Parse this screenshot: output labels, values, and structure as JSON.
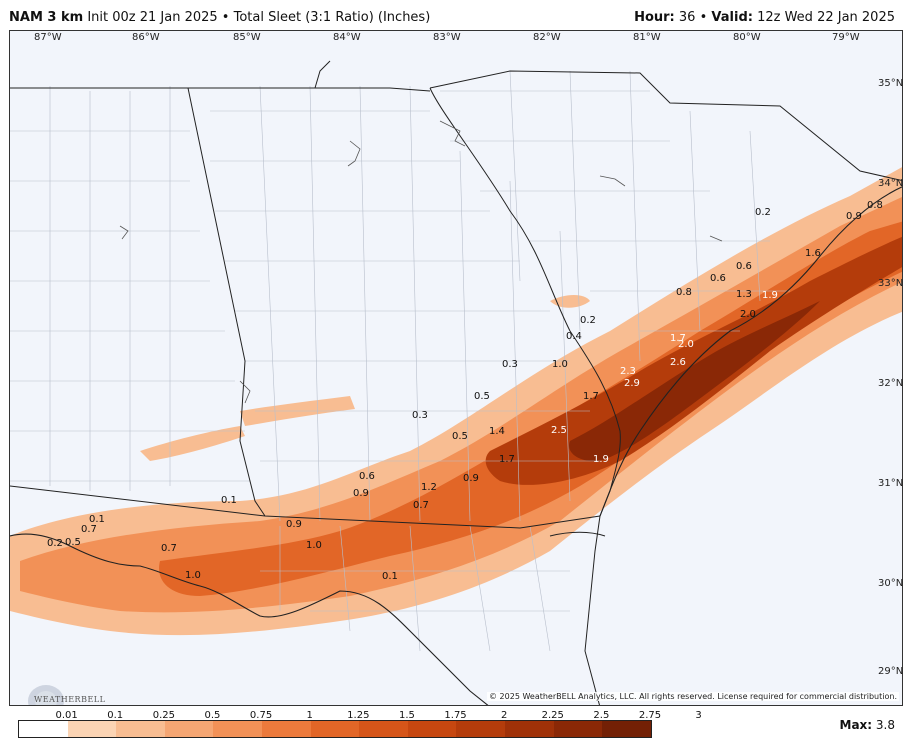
{
  "header": {
    "model": "NAM 3 km",
    "init": "Init 00z 21 Jan 2025",
    "product": "Total Sleet (3:1 Ratio) (Inches)",
    "hour_label": "Hour:",
    "hour": "36",
    "valid_label": "Valid:",
    "valid": "12z Wed 22 Jan 2025"
  },
  "longitude_labels": [
    "87°W",
    "86°W",
    "85°W",
    "84°W",
    "83°W",
    "82°W",
    "81°W",
    "80°W",
    "79°W"
  ],
  "latitude_labels": [
    "35°N",
    "34°N",
    "33°N",
    "32°N",
    "31°N",
    "30°N",
    "29°N"
  ],
  "colorbar": {
    "ticks": [
      "0.01",
      "0.1",
      "0.25",
      "0.5",
      "0.75",
      "1",
      "1.25",
      "1.5",
      "1.75",
      "2",
      "2.25",
      "2.5",
      "2.75",
      "3"
    ],
    "colors": [
      "#ffffff",
      "#fbd4b4",
      "#f8bd92",
      "#f5a673",
      "#f29157",
      "#ec7a3c",
      "#e26627",
      "#d55519",
      "#c64710",
      "#b43c0b",
      "#9f3108",
      "#8a2806",
      "#732005"
    ]
  },
  "max": {
    "label": "Max:",
    "value": "3.8"
  },
  "copyright": "© 2025 WeatherBELL Analytics, LLC. All rights reserved. License required for commercial distribution.",
  "logo_text": "WEATHERBELL",
  "map_values": [
    "0.2",
    "0.9",
    "0.8",
    "1.6",
    "0.6",
    "0.6",
    "0.8",
    "1.3",
    "1.9",
    "2.0",
    "0.2",
    "0.4",
    "1.7",
    "2.0",
    "2.6",
    "0.3",
    "1.0",
    "2.3",
    "2.9",
    "0.5",
    "1.7",
    "0.3",
    "0.5",
    "1.4",
    "2.5",
    "1.7",
    "1.9",
    "0.6",
    "0.9",
    "1.2",
    "0.9",
    "0.7",
    "0.1",
    "0.1",
    "0.9",
    "0.7",
    "0.2",
    "0.5",
    "1.0",
    "0.7",
    "1.0",
    "0.1"
  ]
}
